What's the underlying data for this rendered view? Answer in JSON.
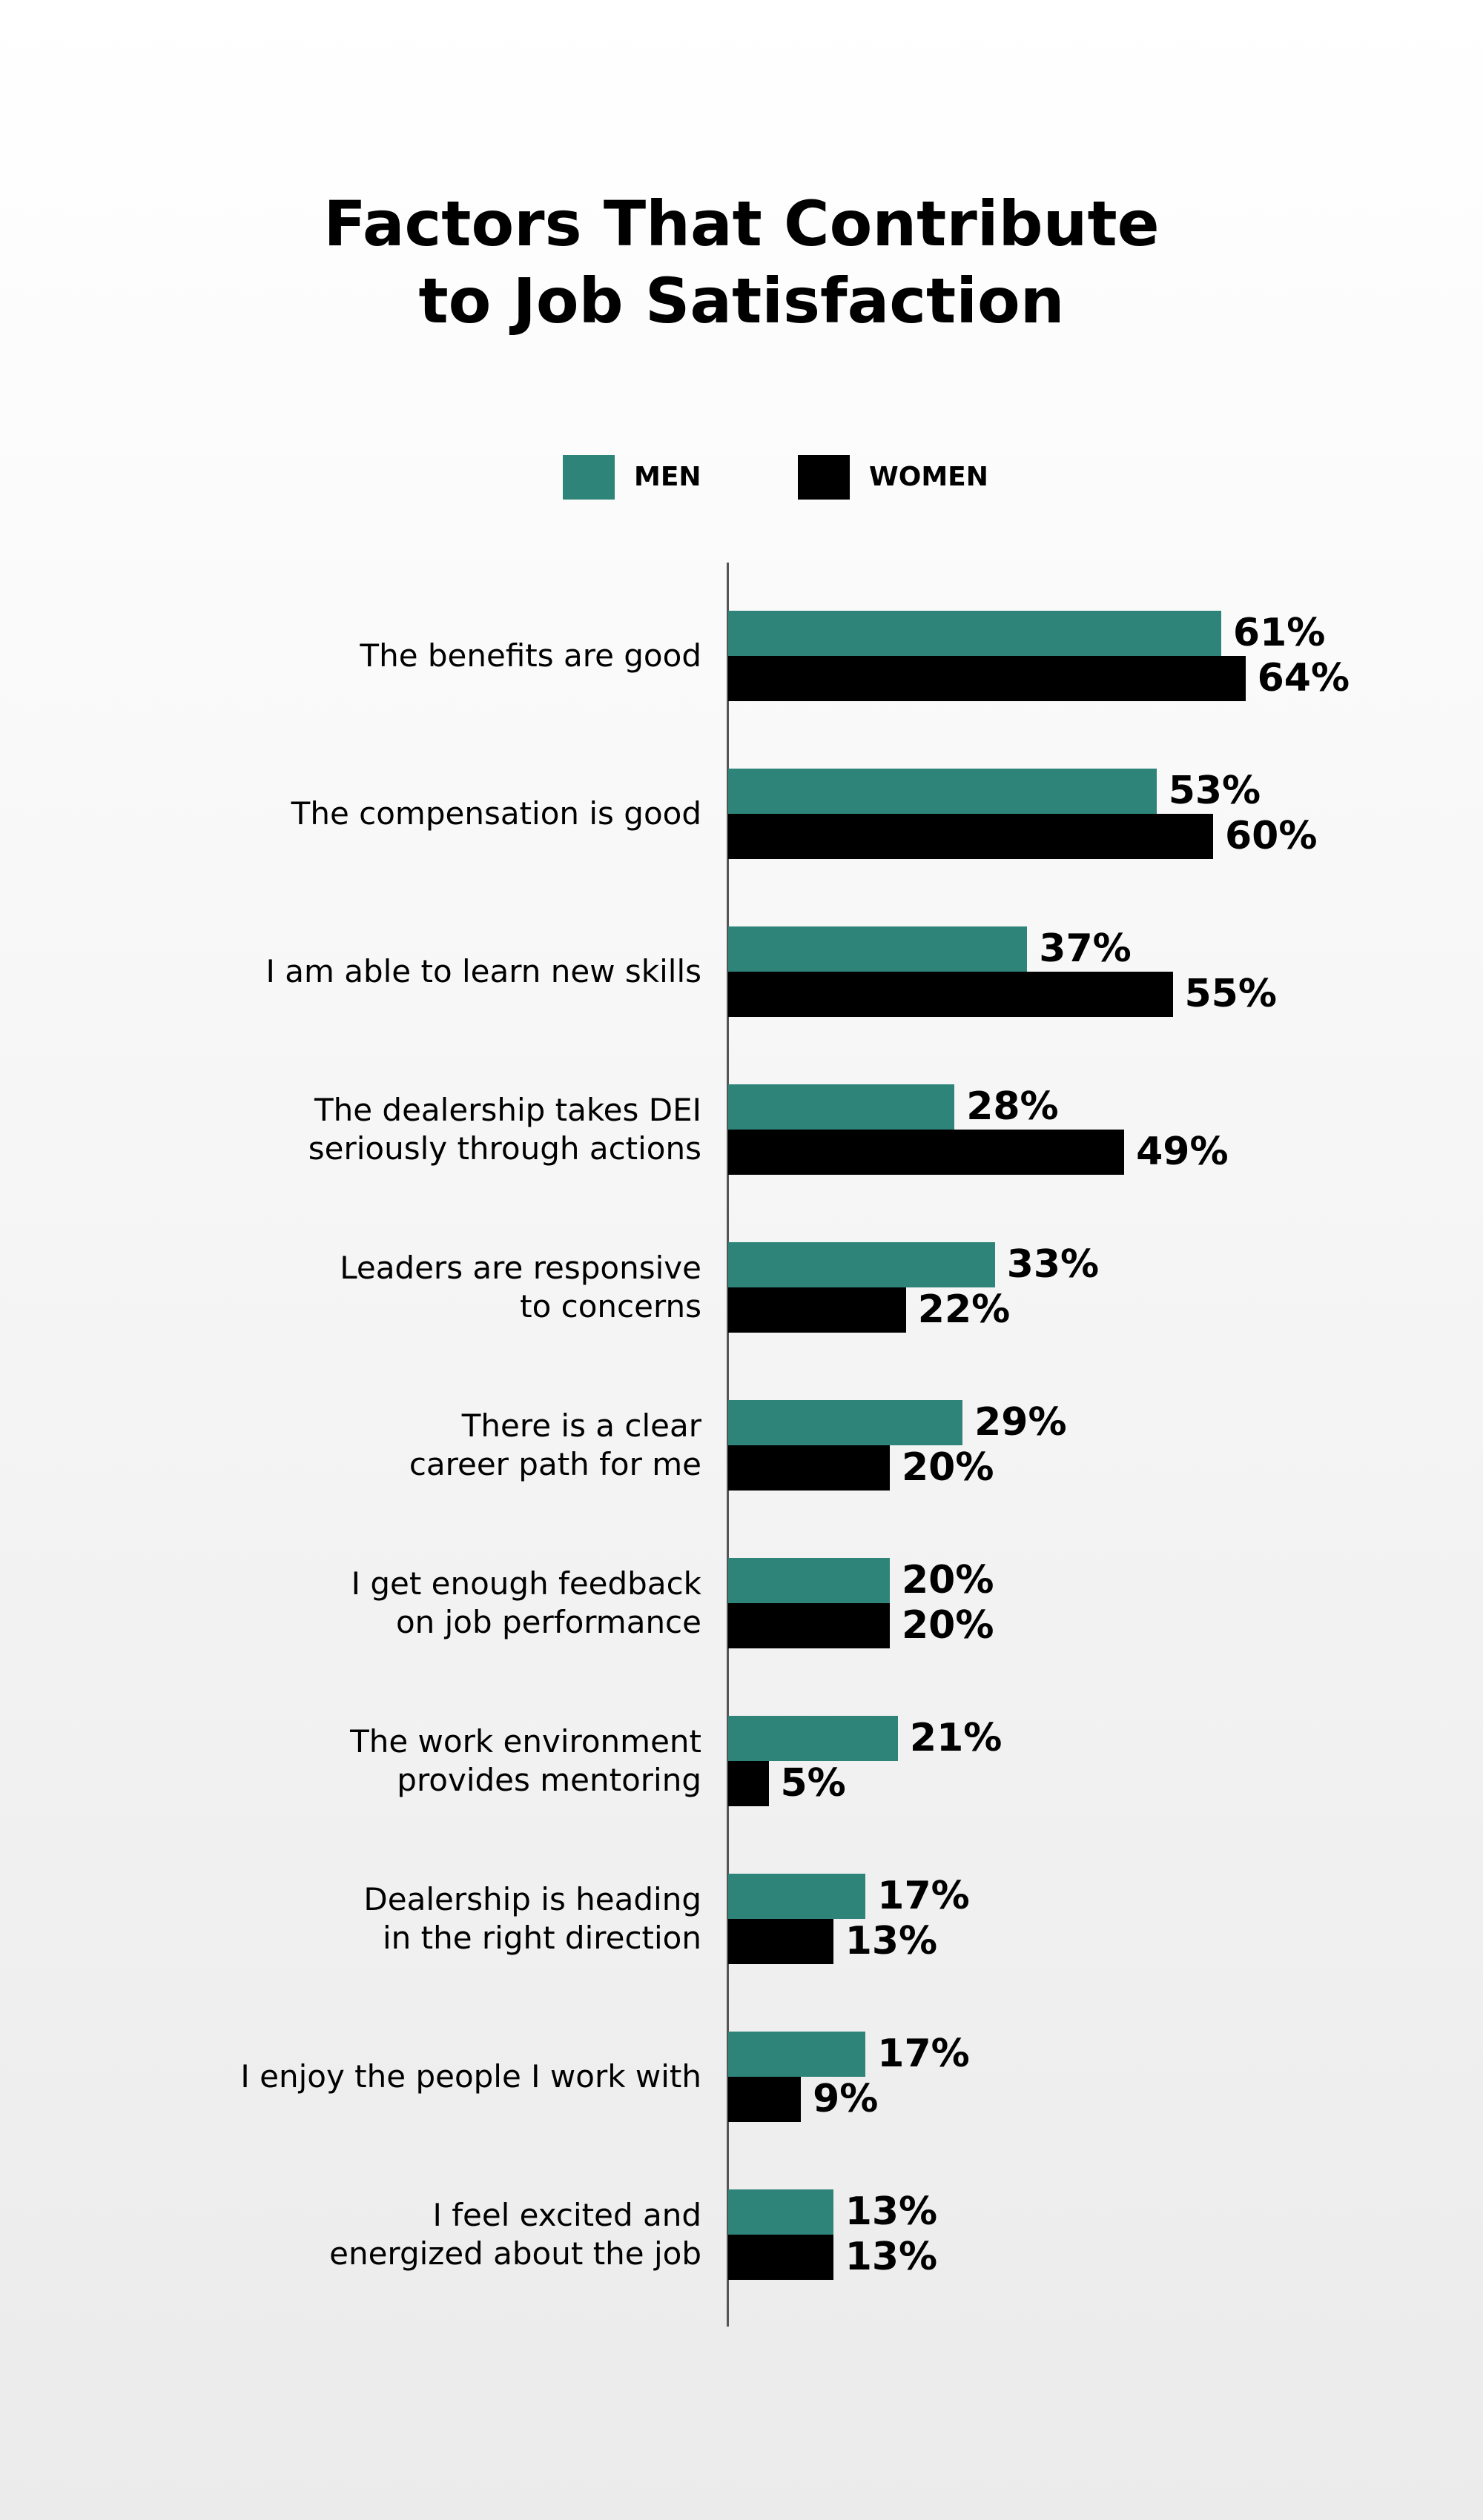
{
  "chart_data": {
    "type": "bar",
    "orientation": "horizontal",
    "title": "Factors That Contribute\nto Job Satisfaction",
    "legend": "top",
    "categories": [
      "The benefits are good",
      "The compensation is good",
      "I am able to learn new skills",
      "The dealership takes DEI\nseriously through actions",
      "Leaders are responsive\nto concerns",
      "There is a clear\ncareer path for me",
      "I get enough feedback\non job performance",
      "The work environment\nprovides mentoring",
      "Dealership is heading\nin the right direction",
      "I enjoy the people I work with",
      "I feel excited and\nenergized about the job"
    ],
    "series": [
      {
        "name": "MEN",
        "color": "#2e8478",
        "values": [
          61,
          53,
          37,
          28,
          33,
          29,
          20,
          21,
          17,
          17,
          13
        ],
        "value_labels": [
          "61%",
          "53%",
          "37%",
          "28%",
          "33%",
          "29%",
          "20%",
          "21%",
          "17%",
          "17%",
          "13%"
        ]
      },
      {
        "name": "WOMEN",
        "color": "#000000",
        "values": [
          64,
          60,
          55,
          49,
          22,
          20,
          20,
          5,
          13,
          9,
          13
        ],
        "value_labels": [
          "64%",
          "60%",
          "55%",
          "49%",
          "22%",
          "20%",
          "20%",
          "5%",
          "13%",
          "9%",
          "13%"
        ]
      }
    ]
  }
}
